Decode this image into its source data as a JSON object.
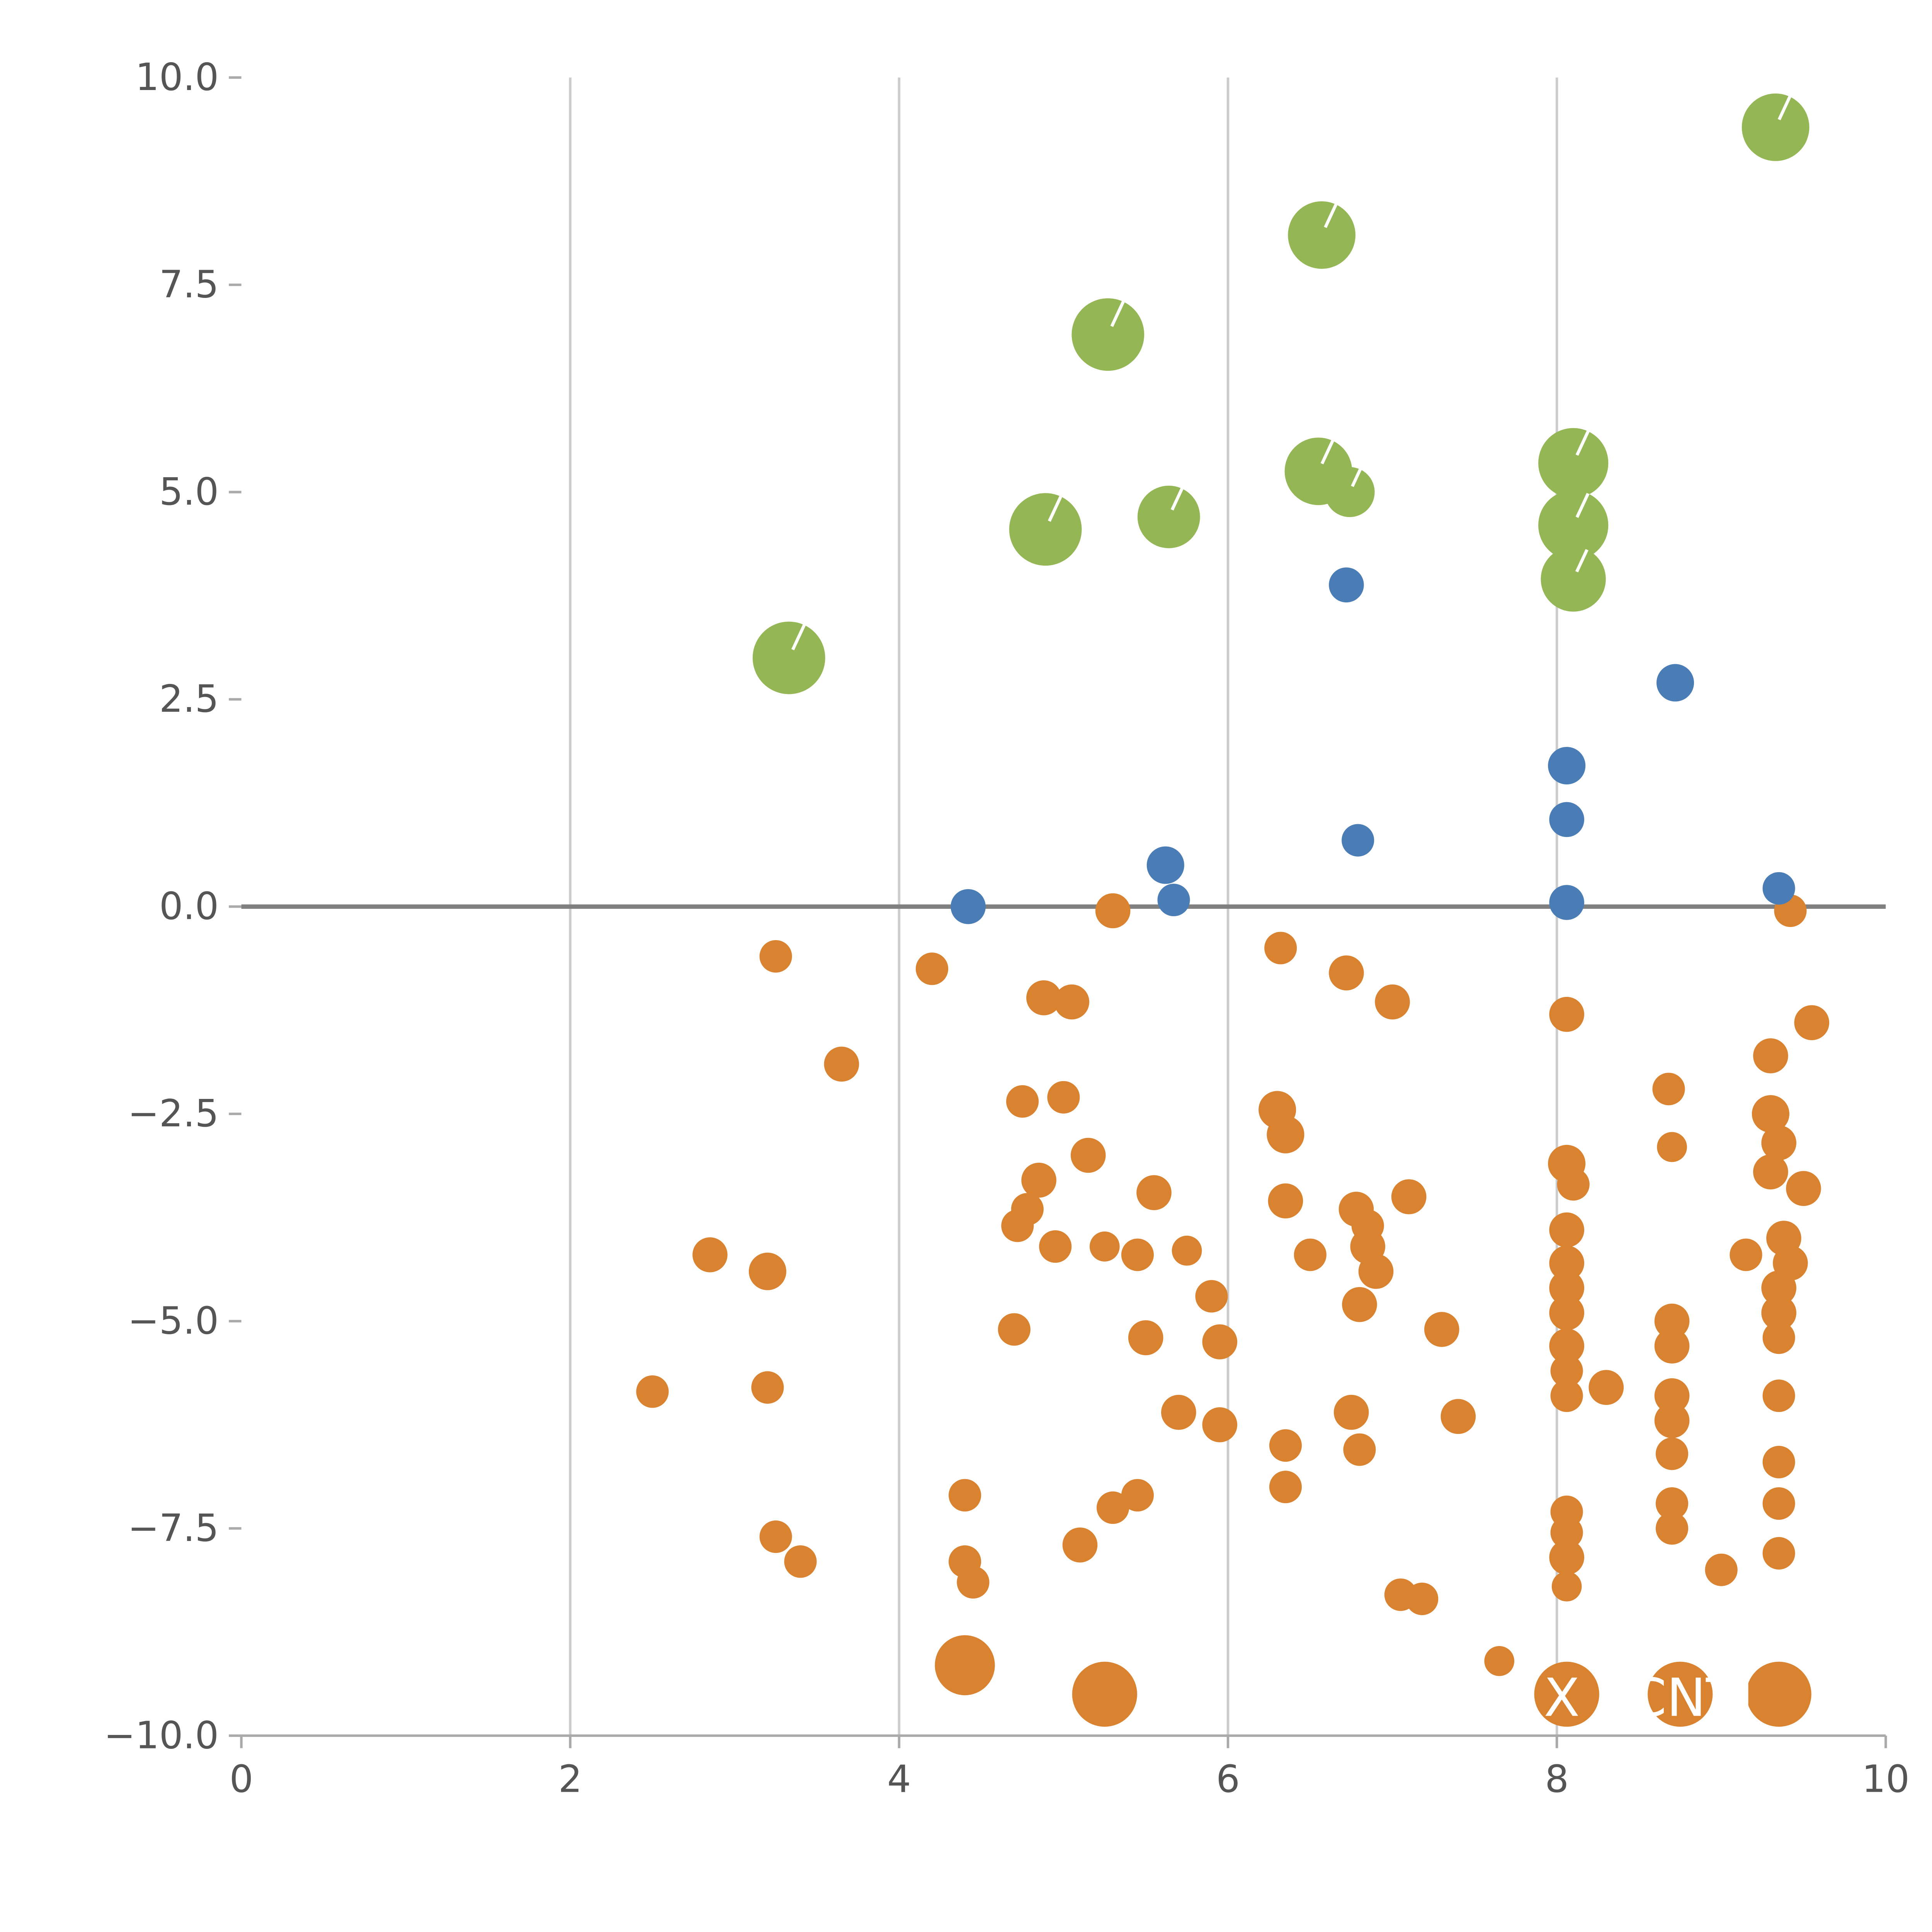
{
  "chart_data": {
    "type": "scatter",
    "title": "",
    "xlabel": "",
    "ylabel": "",
    "xlim": [
      0,
      10
    ],
    "ylim": [
      -10,
      10
    ],
    "xticks": [
      0,
      2,
      4,
      6,
      8,
      10
    ],
    "xtick_labels": [
      "0",
      "2",
      "4",
      "6",
      "8",
      "10"
    ],
    "yticks": [
      10,
      7.5,
      5,
      2.5,
      0,
      -2.5,
      -5,
      -7.5,
      -10
    ],
    "ytick_labels": [
      "10.0",
      "7.5",
      "5.0",
      "2.5",
      "0.0",
      "−2.5",
      "−5.0",
      "−7.5",
      "−10.0"
    ],
    "grid_x": [
      2,
      4,
      6,
      8
    ],
    "grid_on": true,
    "zero_line_y": 0,
    "legend_position": "none",
    "colors": {
      "green": "#94b655",
      "blue": "#4a7db5",
      "orange": "#d9822f",
      "gridline": "#cccccc",
      "zero_line": "#808080",
      "axis_spine": "#aaaaaa",
      "tick_text": "#555555",
      "marker_slash": "#ffffff",
      "annotation_text": "#ffffff"
    },
    "series": [
      {
        "name": "green-large-bubbles",
        "color_key": "green",
        "slash": true,
        "points": [
          {
            "x": 9.33,
            "y": 9.4,
            "r": 27
          },
          {
            "x": 6.57,
            "y": 8.1,
            "r": 27
          },
          {
            "x": 5.27,
            "y": 6.9,
            "r": 29
          },
          {
            "x": 3.33,
            "y": 3.0,
            "r": 29
          },
          {
            "x": 4.89,
            "y": 4.55,
            "r": 29
          },
          {
            "x": 5.64,
            "y": 4.7,
            "r": 25
          },
          {
            "x": 6.55,
            "y": 5.25,
            "r": 27
          },
          {
            "x": 6.74,
            "y": 5.0,
            "r": 20
          },
          {
            "x": 8.1,
            "y": 5.35,
            "r": 28
          },
          {
            "x": 8.1,
            "y": 4.6,
            "r": 28
          },
          {
            "x": 8.1,
            "y": 3.95,
            "r": 26
          }
        ]
      },
      {
        "name": "blue-medium-dots",
        "color_key": "blue",
        "slash": false,
        "points": [
          {
            "x": 6.72,
            "y": 3.88,
            "r": 14
          },
          {
            "x": 8.72,
            "y": 2.7,
            "r": 15
          },
          {
            "x": 8.06,
            "y": 1.7,
            "r": 15
          },
          {
            "x": 8.06,
            "y": 1.05,
            "r": 14
          },
          {
            "x": 6.79,
            "y": 0.8,
            "r": 13
          },
          {
            "x": 5.62,
            "y": 0.5,
            "r": 15
          },
          {
            "x": 5.67,
            "y": 0.08,
            "r": 13
          },
          {
            "x": 4.42,
            "y": 0.0,
            "r": 14
          },
          {
            "x": 8.06,
            "y": 0.05,
            "r": 14
          },
          {
            "x": 9.35,
            "y": 0.22,
            "r": 13
          }
        ]
      },
      {
        "name": "orange-dots",
        "color_key": "orange",
        "slash": false,
        "points": [
          {
            "x": 5.3,
            "y": -0.05,
            "r": 14
          },
          {
            "x": 3.25,
            "y": -0.6,
            "r": 13
          },
          {
            "x": 6.32,
            "y": -0.5,
            "r": 13
          },
          {
            "x": 4.2,
            "y": -0.75,
            "r": 13
          },
          {
            "x": 6.72,
            "y": -0.8,
            "r": 14
          },
          {
            "x": 4.88,
            "y": -1.1,
            "r": 14
          },
          {
            "x": 5.05,
            "y": -1.15,
            "r": 14
          },
          {
            "x": 7.0,
            "y": -1.15,
            "r": 14
          },
          {
            "x": 8.06,
            "y": -1.3,
            "r": 14
          },
          {
            "x": 9.55,
            "y": -1.4,
            "r": 14
          },
          {
            "x": 9.3,
            "y": -1.8,
            "r": 14
          },
          {
            "x": 3.65,
            "y": -1.9,
            "r": 14
          },
          {
            "x": 8.68,
            "y": -2.2,
            "r": 13
          },
          {
            "x": 4.75,
            "y": -2.35,
            "r": 13
          },
          {
            "x": 5.0,
            "y": -2.3,
            "r": 13
          },
          {
            "x": 6.3,
            "y": -2.45,
            "r": 15
          },
          {
            "x": 6.35,
            "y": -2.75,
            "r": 15
          },
          {
            "x": 9.3,
            "y": -2.5,
            "r": 15
          },
          {
            "x": 8.7,
            "y": -2.9,
            "r": 12
          },
          {
            "x": 9.35,
            "y": -2.85,
            "r": 14
          },
          {
            "x": 5.15,
            "y": -3.0,
            "r": 14
          },
          {
            "x": 8.06,
            "y": -3.1,
            "r": 15
          },
          {
            "x": 8.1,
            "y": -3.35,
            "r": 13
          },
          {
            "x": 9.3,
            "y": -3.2,
            "r": 14
          },
          {
            "x": 9.5,
            "y": -3.4,
            "r": 14
          },
          {
            "x": 4.85,
            "y": -3.3,
            "r": 14
          },
          {
            "x": 5.55,
            "y": -3.45,
            "r": 14
          },
          {
            "x": 6.35,
            "y": -3.55,
            "r": 14
          },
          {
            "x": 7.1,
            "y": -3.5,
            "r": 14
          },
          {
            "x": 4.78,
            "y": -3.65,
            "r": 13
          },
          {
            "x": 4.72,
            "y": -3.85,
            "r": 13
          },
          {
            "x": 6.78,
            "y": -3.65,
            "r": 14
          },
          {
            "x": 6.85,
            "y": -3.85,
            "r": 13
          },
          {
            "x": 8.06,
            "y": -3.9,
            "r": 14
          },
          {
            "x": 2.85,
            "y": -4.2,
            "r": 14
          },
          {
            "x": 3.2,
            "y": -4.4,
            "r": 15
          },
          {
            "x": 4.95,
            "y": -4.1,
            "r": 13
          },
          {
            "x": 5.25,
            "y": -4.1,
            "r": 12
          },
          {
            "x": 5.45,
            "y": -4.2,
            "r": 13
          },
          {
            "x": 5.75,
            "y": -4.15,
            "r": 12
          },
          {
            "x": 6.5,
            "y": -4.2,
            "r": 13
          },
          {
            "x": 6.85,
            "y": -4.1,
            "r": 14
          },
          {
            "x": 6.9,
            "y": -4.4,
            "r": 14
          },
          {
            "x": 8.06,
            "y": -4.3,
            "r": 14
          },
          {
            "x": 8.06,
            "y": -4.6,
            "r": 14
          },
          {
            "x": 9.15,
            "y": -4.2,
            "r": 13
          },
          {
            "x": 9.38,
            "y": -4.0,
            "r": 14
          },
          {
            "x": 9.42,
            "y": -4.3,
            "r": 14
          },
          {
            "x": 5.9,
            "y": -4.7,
            "r": 13
          },
          {
            "x": 6.8,
            "y": -4.8,
            "r": 14
          },
          {
            "x": 8.06,
            "y": -4.9,
            "r": 14
          },
          {
            "x": 9.35,
            "y": -4.6,
            "r": 14
          },
          {
            "x": 9.35,
            "y": -4.9,
            "r": 14
          },
          {
            "x": 4.7,
            "y": -5.1,
            "r": 13
          },
          {
            "x": 5.5,
            "y": -5.2,
            "r": 14
          },
          {
            "x": 5.95,
            "y": -5.25,
            "r": 14
          },
          {
            "x": 7.3,
            "y": -5.1,
            "r": 14
          },
          {
            "x": 8.06,
            "y": -5.3,
            "r": 14
          },
          {
            "x": 8.06,
            "y": -5.6,
            "r": 13
          },
          {
            "x": 8.7,
            "y": -5.0,
            "r": 14
          },
          {
            "x": 8.7,
            "y": -5.3,
            "r": 14
          },
          {
            "x": 9.35,
            "y": -5.2,
            "r": 13
          },
          {
            "x": 2.5,
            "y": -5.85,
            "r": 13
          },
          {
            "x": 3.2,
            "y": -5.8,
            "r": 13
          },
          {
            "x": 5.7,
            "y": -6.1,
            "r": 14
          },
          {
            "x": 5.95,
            "y": -6.25,
            "r": 14
          },
          {
            "x": 6.75,
            "y": -6.1,
            "r": 14
          },
          {
            "x": 7.4,
            "y": -6.15,
            "r": 14
          },
          {
            "x": 8.06,
            "y": -5.9,
            "r": 13
          },
          {
            "x": 8.3,
            "y": -5.8,
            "r": 14
          },
          {
            "x": 8.7,
            "y": -5.9,
            "r": 14
          },
          {
            "x": 8.7,
            "y": -6.2,
            "r": 14
          },
          {
            "x": 9.35,
            "y": -5.9,
            "r": 13
          },
          {
            "x": 6.35,
            "y": -6.5,
            "r": 13
          },
          {
            "x": 6.8,
            "y": -6.55,
            "r": 13
          },
          {
            "x": 8.7,
            "y": -6.6,
            "r": 13
          },
          {
            "x": 9.35,
            "y": -6.7,
            "r": 13
          },
          {
            "x": 4.4,
            "y": -7.1,
            "r": 13
          },
          {
            "x": 5.3,
            "y": -7.25,
            "r": 13
          },
          {
            "x": 5.45,
            "y": -7.1,
            "r": 13
          },
          {
            "x": 6.35,
            "y": -7.0,
            "r": 13
          },
          {
            "x": 8.06,
            "y": -7.3,
            "r": 13
          },
          {
            "x": 8.06,
            "y": -7.55,
            "r": 13
          },
          {
            "x": 8.7,
            "y": -7.2,
            "r": 13
          },
          {
            "x": 8.7,
            "y": -7.5,
            "r": 13
          },
          {
            "x": 9.35,
            "y": -7.2,
            "r": 13
          },
          {
            "x": 3.25,
            "y": -7.6,
            "r": 13
          },
          {
            "x": 3.4,
            "y": -7.9,
            "r": 13
          },
          {
            "x": 4.4,
            "y": -7.9,
            "r": 13
          },
          {
            "x": 4.45,
            "y": -8.15,
            "r": 13
          },
          {
            "x": 5.1,
            "y": -7.7,
            "r": 14
          },
          {
            "x": 8.06,
            "y": -7.85,
            "r": 14
          },
          {
            "x": 9.0,
            "y": -8.0,
            "r": 13
          },
          {
            "x": 9.35,
            "y": -7.8,
            "r": 13
          },
          {
            "x": 7.05,
            "y": -8.3,
            "r": 13
          },
          {
            "x": 7.18,
            "y": -8.35,
            "r": 13
          },
          {
            "x": 8.06,
            "y": -8.2,
            "r": 12
          },
          {
            "x": 7.65,
            "y": -9.1,
            "r": 12
          },
          {
            "x": 4.4,
            "y": -9.15,
            "r": 24
          },
          {
            "x": 5.25,
            "y": -9.5,
            "r": 26
          },
          {
            "x": 9.42,
            "y": -0.05,
            "r": 13
          },
          {
            "x": 8.06,
            "y": -9.5,
            "r": 26
          },
          {
            "x": 8.75,
            "y": -9.5,
            "r": 26
          },
          {
            "x": 9.35,
            "y": -9.5,
            "r": 26
          }
        ]
      }
    ],
    "annotations": [
      {
        "text": "X",
        "x": 8.03,
        "y": -9.55
      },
      {
        "text": "CNTI",
        "x": 8.82,
        "y": -9.55
      }
    ]
  }
}
